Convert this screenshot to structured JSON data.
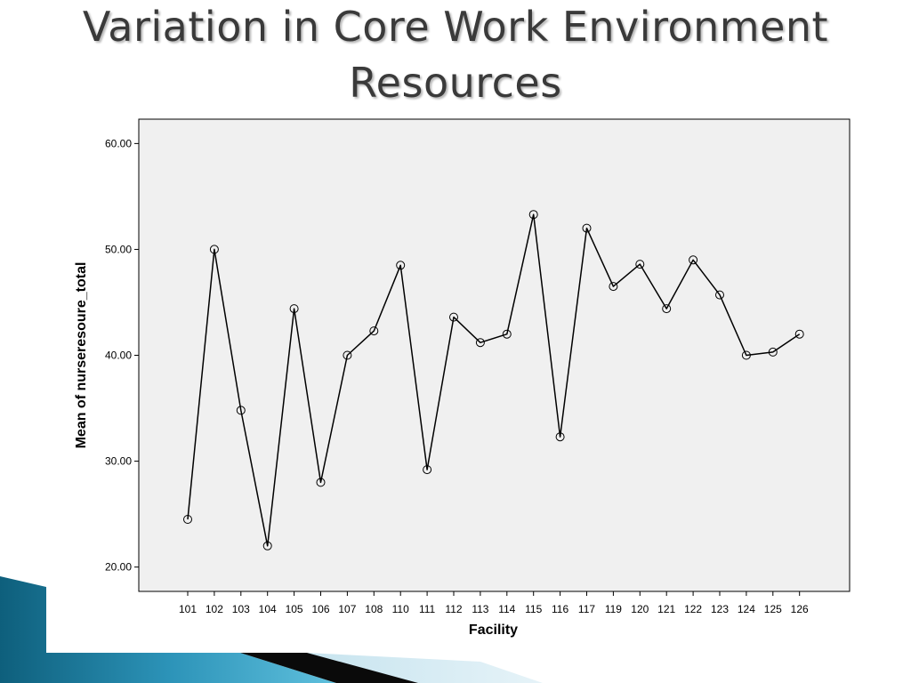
{
  "slide": {
    "title_line1": "Variation in Core Work Environment",
    "title_line2": "Resources"
  },
  "chart_data": {
    "type": "line",
    "title": "",
    "xlabel": "Facility",
    "ylabel": "Mean of nurseresoure_total",
    "categories": [
      "101",
      "102",
      "103",
      "104",
      "105",
      "106",
      "107",
      "108",
      "110",
      "111",
      "112",
      "113",
      "114",
      "115",
      "116",
      "117",
      "119",
      "120",
      "121",
      "122",
      "123",
      "124",
      "125",
      "126"
    ],
    "values": [
      24.5,
      50.0,
      34.8,
      22.0,
      44.4,
      28.0,
      40.0,
      42.3,
      48.5,
      29.2,
      43.6,
      41.2,
      42.0,
      53.3,
      32.3,
      52.0,
      46.5,
      48.6,
      44.4,
      49.0,
      45.7,
      40.0,
      40.3,
      42.0
    ],
    "ylim": [
      17.7,
      62.3
    ],
    "yticks": [
      20,
      30,
      40,
      50,
      60
    ],
    "ytick_labels": [
      "20.00",
      "30.00",
      "40.00",
      "50.00",
      "60.00"
    ],
    "grid": false,
    "plot_background": "#f0f0f0",
    "line_color": "#000000",
    "marker": "open-circle"
  }
}
